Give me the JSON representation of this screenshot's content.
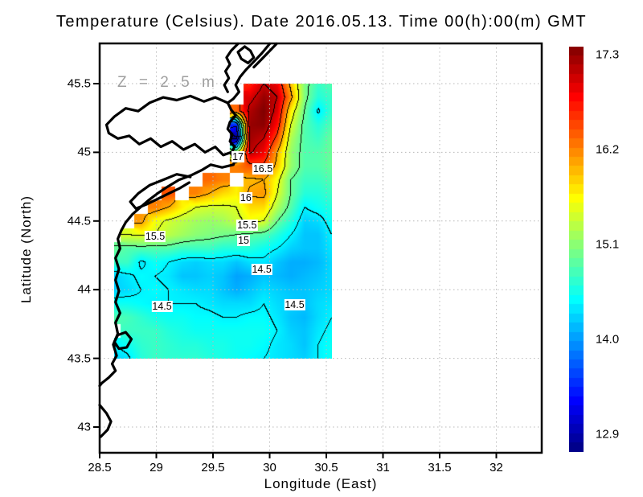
{
  "title": "Temperature (Celsius). Date 2016.05.13. Time 00(h):00(m) GMT",
  "annotation": "Z = 2.5 m",
  "axes": {
    "xlabel": "Longitude (East)",
    "ylabel": "Latitude (North)",
    "x_ticks": [
      "28.5",
      "29",
      "29.5",
      "30",
      "30.5",
      "31",
      "31.5",
      "32"
    ],
    "x_tick_values": [
      28.5,
      29,
      29.5,
      30,
      30.5,
      31,
      31.5,
      32
    ],
    "y_ticks": [
      "45.5",
      "45",
      "44.5",
      "44",
      "43.5",
      "43"
    ],
    "y_tick_values": [
      45.5,
      45,
      44.5,
      44,
      43.5,
      43
    ],
    "xlim": [
      28.5,
      32.4
    ],
    "ylim": [
      42.81,
      45.79
    ],
    "grid_color": "#b8b8b8"
  },
  "colorbar": {
    "labels": [
      "17.3",
      "16.2",
      "15.1",
      "14.0",
      "12.9"
    ],
    "values": [
      17.3,
      16.2,
      15.1,
      14.0,
      12.9
    ],
    "min": 12.9,
    "max": 17.3,
    "colormap": "jet",
    "top_color": "#800000",
    "bottom_color": "#000080"
  },
  "chart_data": {
    "type": "heatmap",
    "variable": "Temperature (Celsius)",
    "depth": "2.5 m",
    "datetime": "2016.05.13 00:00 GMT",
    "contour_interval": 0.5,
    "lon": [
      28.63,
      28.75,
      28.87,
      28.99,
      29.11,
      29.23,
      29.35,
      29.47,
      29.59,
      29.71,
      29.83,
      29.95,
      30.07,
      30.19,
      30.31,
      30.43,
      30.55
    ],
    "lat": [
      45.5,
      45.4,
      45.3,
      45.2,
      45.1,
      45.0,
      44.9,
      44.8,
      44.7,
      44.6,
      44.5,
      44.4,
      44.3,
      44.2,
      44.1,
      44.0,
      43.9,
      43.8,
      43.7,
      43.6,
      43.5
    ],
    "grid": [
      [
        null,
        null,
        null,
        null,
        null,
        null,
        null,
        null,
        null,
        null,
        16.6,
        17.0,
        16.8,
        15.9,
        15.1,
        14.8,
        14.9
      ],
      [
        null,
        null,
        null,
        null,
        null,
        null,
        null,
        null,
        null,
        null,
        16.9,
        17.2,
        17.0,
        16.1,
        15.1,
        14.7,
        14.8
      ],
      [
        null,
        null,
        null,
        null,
        null,
        null,
        null,
        null,
        null,
        16.3,
        17.1,
        17.3,
        16.9,
        15.7,
        15.0,
        14.45,
        14.8
      ],
      [
        null,
        null,
        null,
        null,
        null,
        null,
        null,
        null,
        null,
        13.6,
        17.2,
        17.25,
        16.7,
        15.5,
        14.9,
        14.7,
        14.9
      ],
      [
        null,
        null,
        null,
        null,
        null,
        null,
        null,
        null,
        null,
        12.9,
        17.15,
        17.0,
        16.4,
        15.3,
        14.9,
        14.8,
        15.0
      ],
      [
        null,
        null,
        null,
        null,
        null,
        null,
        null,
        null,
        null,
        15.3,
        17.05,
        16.8,
        16.0,
        15.2,
        14.9,
        14.9,
        15.0
      ],
      [
        null,
        null,
        null,
        null,
        null,
        null,
        null,
        null,
        null,
        16.2,
        16.4,
        16.45,
        15.9,
        15.2,
        14.9,
        14.9,
        15.0
      ],
      [
        null,
        null,
        null,
        null,
        null,
        null,
        null,
        16.3,
        16.2,
        null,
        15.95,
        16.0,
        15.6,
        15.0,
        14.8,
        14.8,
        14.9
      ],
      [
        null,
        null,
        null,
        null,
        16.4,
        null,
        16.2,
        16.0,
        15.8,
        15.7,
        16.05,
        16.1,
        15.5,
        15.0,
        14.7,
        14.7,
        14.8
      ],
      [
        null,
        null,
        null,
        16.2,
        16.0,
        15.7,
        15.5,
        15.45,
        15.45,
        15.5,
        15.8,
        15.8,
        15.3,
        14.9,
        14.5,
        14.6,
        14.7
      ],
      [
        null,
        null,
        16.1,
        15.6,
        15.45,
        15.35,
        15.25,
        15.2,
        15.25,
        15.4,
        15.6,
        15.5,
        15.0,
        14.7,
        14.35,
        14.4,
        14.6
      ],
      [
        null,
        15.5,
        15.55,
        15.5,
        15.35,
        15.25,
        15.15,
        15.1,
        15.05,
        15.0,
        14.95,
        14.9,
        14.7,
        14.5,
        14.3,
        14.3,
        14.5
      ],
      [
        15.0,
        14.9,
        14.9,
        14.9,
        14.9,
        14.8,
        14.8,
        14.8,
        14.7,
        14.7,
        14.7,
        14.6,
        14.5,
        14.35,
        14.3,
        14.3,
        14.45
      ],
      [
        14.8,
        14.8,
        14.45,
        14.6,
        14.5,
        14.4,
        14.35,
        14.4,
        14.4,
        14.3,
        14.42,
        14.45,
        14.3,
        14.2,
        14.2,
        14.25,
        14.4
      ],
      [
        14.35,
        14.45,
        14.55,
        14.5,
        14.45,
        14.3,
        14.3,
        14.35,
        14.3,
        14.15,
        14.2,
        14.3,
        14.25,
        14.2,
        14.25,
        14.3,
        14.4
      ],
      [
        14.35,
        14.4,
        14.5,
        14.55,
        14.5,
        14.45,
        14.4,
        14.4,
        14.3,
        14.2,
        14.3,
        14.4,
        14.35,
        14.3,
        14.3,
        14.35,
        14.4
      ],
      [
        14.6,
        14.6,
        14.55,
        14.5,
        14.5,
        14.5,
        14.5,
        14.45,
        14.4,
        14.4,
        14.4,
        14.5,
        14.4,
        14.35,
        14.3,
        14.4,
        14.45
      ],
      [
        14.9,
        14.85,
        14.75,
        14.65,
        14.6,
        14.6,
        14.55,
        14.55,
        14.5,
        14.5,
        14.55,
        14.55,
        14.45,
        14.3,
        14.25,
        14.4,
        14.5
      ],
      [
        null,
        14.8,
        14.8,
        14.8,
        14.7,
        14.65,
        14.6,
        14.6,
        14.6,
        14.6,
        14.6,
        14.6,
        14.5,
        14.35,
        14.3,
        14.45,
        14.55
      ],
      [
        14.5,
        14.6,
        14.75,
        14.8,
        14.75,
        14.7,
        14.7,
        14.65,
        14.65,
        14.6,
        14.6,
        14.55,
        14.45,
        14.4,
        14.3,
        14.5,
        14.6
      ],
      [
        14.35,
        14.45,
        14.7,
        14.8,
        14.75,
        14.75,
        14.75,
        14.7,
        14.65,
        14.6,
        14.55,
        14.5,
        14.45,
        14.4,
        14.35,
        14.5,
        14.6
      ]
    ],
    "contour_labels": [
      {
        "value": "17",
        "lon": 29.72,
        "lat": 44.97
      },
      {
        "value": "16.5",
        "lon": 29.94,
        "lat": 44.88
      },
      {
        "value": "16",
        "lon": 29.79,
        "lat": 44.67
      },
      {
        "value": "15.5",
        "lon": 29.8,
        "lat": 44.47
      },
      {
        "value": "15",
        "lon": 29.77,
        "lat": 44.36
      },
      {
        "value": "15.5",
        "lon": 28.99,
        "lat": 44.39
      },
      {
        "value": "14.5",
        "lon": 29.93,
        "lat": 44.15
      },
      {
        "value": "14.5",
        "lon": 29.05,
        "lat": 43.88
      },
      {
        "value": "14.5",
        "lon": 30.22,
        "lat": 43.89
      }
    ],
    "coastline": [
      [
        [
          30.0,
          45.79
        ],
        [
          29.93,
          45.72
        ],
        [
          29.86,
          45.66
        ],
        [
          29.79,
          45.6
        ],
        [
          29.74,
          45.55
        ],
        [
          29.7,
          45.49
        ],
        [
          29.73,
          45.44
        ],
        [
          29.68,
          45.39
        ],
        [
          29.63,
          45.36
        ],
        [
          29.66,
          45.31
        ],
        [
          29.7,
          45.27
        ],
        [
          29.65,
          45.22
        ],
        [
          29.63,
          45.17
        ],
        [
          29.67,
          45.13
        ],
        [
          29.65,
          45.08
        ],
        [
          29.69,
          45.04
        ],
        [
          29.66,
          44.99
        ],
        [
          29.7,
          44.95
        ],
        [
          29.68,
          44.91
        ],
        [
          29.58,
          44.89
        ],
        [
          29.48,
          44.91
        ],
        [
          29.4,
          44.87
        ],
        [
          29.3,
          44.83
        ],
        [
          29.2,
          44.8
        ],
        [
          29.1,
          44.75
        ],
        [
          29.01,
          44.7
        ],
        [
          28.93,
          44.65
        ],
        [
          28.86,
          44.6
        ],
        [
          28.79,
          44.55
        ],
        [
          28.73,
          44.49
        ],
        [
          28.69,
          44.43
        ],
        [
          28.66,
          44.37
        ],
        [
          28.68,
          44.3
        ],
        [
          28.64,
          44.23
        ],
        [
          28.67,
          44.15
        ],
        [
          28.64,
          44.07
        ],
        [
          28.67,
          43.99
        ],
        [
          28.64,
          43.91
        ],
        [
          28.68,
          43.83
        ],
        [
          28.64,
          43.76
        ],
        [
          28.66,
          43.68
        ],
        [
          28.62,
          43.6
        ],
        [
          28.65,
          43.52
        ],
        [
          28.61,
          43.46
        ],
        [
          28.64,
          43.41
        ],
        [
          28.58,
          43.36
        ],
        [
          28.52,
          43.32
        ],
        [
          28.5,
          43.3
        ]
      ],
      [
        [
          29.63,
          45.36
        ],
        [
          29.52,
          45.4
        ],
        [
          29.42,
          45.37
        ],
        [
          29.3,
          45.41
        ],
        [
          29.18,
          45.38
        ],
        [
          29.06,
          45.4
        ],
        [
          28.94,
          45.36
        ],
        [
          28.84,
          45.3
        ],
        [
          28.73,
          45.32
        ],
        [
          28.63,
          45.26
        ],
        [
          28.56,
          45.2
        ],
        [
          28.58,
          45.14
        ],
        [
          28.66,
          45.1
        ],
        [
          28.76,
          45.12
        ],
        [
          28.85,
          45.06
        ],
        [
          28.95,
          45.1
        ],
        [
          29.04,
          45.04
        ],
        [
          29.14,
          45.08
        ],
        [
          29.24,
          45.02
        ],
        [
          29.34,
          45.06
        ],
        [
          29.43,
          45.0
        ],
        [
          29.52,
          45.04
        ],
        [
          29.59,
          44.98
        ],
        [
          29.66,
          45.0
        ],
        [
          29.68,
          44.95
        ]
      ],
      [
        [
          29.3,
          44.82
        ],
        [
          29.18,
          44.84
        ],
        [
          29.06,
          44.8
        ],
        [
          28.94,
          44.76
        ],
        [
          28.84,
          44.7
        ],
        [
          28.77,
          44.64
        ],
        [
          28.82,
          44.59
        ],
        [
          28.91,
          44.62
        ],
        [
          29.01,
          44.66
        ],
        [
          29.11,
          44.7
        ],
        [
          29.21,
          44.74
        ],
        [
          29.29,
          44.78
        ]
      ],
      [
        [
          29.72,
          45.79
        ],
        [
          29.66,
          45.74
        ],
        [
          29.62,
          45.69
        ],
        [
          29.65,
          45.64
        ],
        [
          29.61,
          45.59
        ],
        [
          29.64,
          45.54
        ],
        [
          29.6,
          45.49
        ],
        [
          29.63,
          45.44
        ]
      ],
      [
        [
          29.78,
          45.77
        ],
        [
          29.72,
          45.73
        ],
        [
          29.75,
          45.68
        ],
        [
          29.81,
          45.65
        ],
        [
          29.86,
          45.69
        ],
        [
          29.83,
          45.74
        ],
        [
          29.78,
          45.77
        ]
      ],
      [
        [
          30.06,
          45.79
        ],
        [
          29.99,
          45.73
        ],
        [
          29.92,
          45.67
        ],
        [
          29.86,
          45.62
        ]
      ],
      [
        [
          28.66,
          43.67
        ],
        [
          28.73,
          43.69
        ],
        [
          28.78,
          43.64
        ],
        [
          28.74,
          43.58
        ],
        [
          28.67,
          43.57
        ],
        [
          28.63,
          43.62
        ],
        [
          28.66,
          43.67
        ]
      ],
      [
        [
          28.5,
          43.16
        ],
        [
          28.56,
          43.1
        ],
        [
          28.6,
          43.04
        ],
        [
          28.57,
          42.98
        ],
        [
          28.51,
          42.93
        ]
      ]
    ]
  }
}
